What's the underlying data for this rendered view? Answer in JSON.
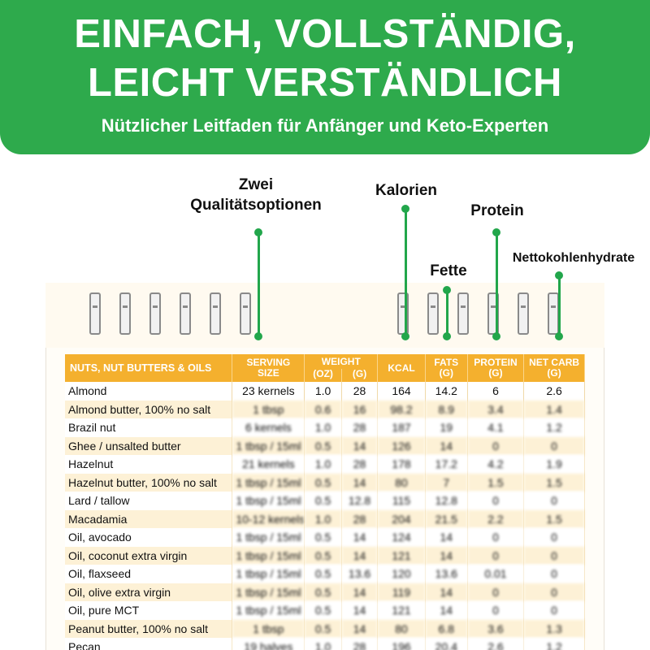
{
  "banner": {
    "title_line1": "EINFACH, VOLLSTÄNDIG,",
    "title_line2": "LEICHT VERSTÄNDLICH",
    "subtitle": "Nützlicher Leitfaden für Anfänger und Keto-Experten",
    "color": "#2eaa4c"
  },
  "callouts": {
    "options_line1": "Zwei",
    "options_line2": "Qualitätsoptionen",
    "calories": "Kalorien",
    "protein": "Protein",
    "fats": "Fette",
    "net_carbs": "Nettokohlenhydrate"
  },
  "table": {
    "header_color": "#f4b02e",
    "headers": {
      "category": "NUTS, NUT BUTTERS & OILS",
      "serving_1": "SERVING",
      "serving_2": "SIZE",
      "weight": "WEIGHT",
      "oz": "(OZ)",
      "g": "(G)",
      "kcal": "KCAL",
      "fats_1": "FATS",
      "fats_2": "(G)",
      "protein_1": "PROTEIN",
      "protein_2": "(G)",
      "netcarb_1": "NET CARB",
      "netcarb_2": "(G)"
    },
    "rows": [
      {
        "name": "Almond",
        "serving": "23 kernels",
        "oz": "1.0",
        "g": "28",
        "kcal": "164",
        "fats": "14.2",
        "protein": "6",
        "netcarb": "2.6"
      },
      {
        "name": "Almond butter, 100% no salt",
        "serving": "1 tbsp",
        "oz": "0.6",
        "g": "16",
        "kcal": "98.2",
        "fats": "8.9",
        "protein": "3.4",
        "netcarb": "1.4"
      },
      {
        "name": "Brazil nut",
        "serving": "6 kernels",
        "oz": "1.0",
        "g": "28",
        "kcal": "187",
        "fats": "19",
        "protein": "4.1",
        "netcarb": "1.2"
      },
      {
        "name": "Ghee / unsalted butter",
        "serving": "1 tbsp / 15ml",
        "oz": "0.5",
        "g": "14",
        "kcal": "126",
        "fats": "14",
        "protein": "0",
        "netcarb": "0"
      },
      {
        "name": "Hazelnut",
        "serving": "21 kernels",
        "oz": "1.0",
        "g": "28",
        "kcal": "178",
        "fats": "17.2",
        "protein": "4.2",
        "netcarb": "1.9"
      },
      {
        "name": "Hazelnut butter, 100% no salt",
        "serving": "1 tbsp / 15ml",
        "oz": "0.5",
        "g": "14",
        "kcal": "80",
        "fats": "7",
        "protein": "1.5",
        "netcarb": "1.5"
      },
      {
        "name": "Lard / tallow",
        "serving": "1 tbsp / 15ml",
        "oz": "0.5",
        "g": "12.8",
        "kcal": "115",
        "fats": "12.8",
        "protein": "0",
        "netcarb": "0"
      },
      {
        "name": "Macadamia",
        "serving": "10-12 kernels",
        "oz": "1.0",
        "g": "28",
        "kcal": "204",
        "fats": "21.5",
        "protein": "2.2",
        "netcarb": "1.5"
      },
      {
        "name": "Oil, avocado",
        "serving": "1 tbsp / 15ml",
        "oz": "0.5",
        "g": "14",
        "kcal": "124",
        "fats": "14",
        "protein": "0",
        "netcarb": "0"
      },
      {
        "name": "Oil, coconut extra virgin",
        "serving": "1 tbsp / 15ml",
        "oz": "0.5",
        "g": "14",
        "kcal": "121",
        "fats": "14",
        "protein": "0",
        "netcarb": "0"
      },
      {
        "name": "Oil, flaxseed",
        "serving": "1 tbsp / 15ml",
        "oz": "0.5",
        "g": "13.6",
        "kcal": "120",
        "fats": "13.6",
        "protein": "0.01",
        "netcarb": "0"
      },
      {
        "name": "Oil, olive extra virgin",
        "serving": "1 tbsp / 15ml",
        "oz": "0.5",
        "g": "14",
        "kcal": "119",
        "fats": "14",
        "protein": "0",
        "netcarb": "0"
      },
      {
        "name": "Oil, pure MCT",
        "serving": "1 tbsp / 15ml",
        "oz": "0.5",
        "g": "14",
        "kcal": "121",
        "fats": "14",
        "protein": "0",
        "netcarb": "0"
      },
      {
        "name": "Peanut butter, 100% no salt",
        "serving": "1 tbsp",
        "oz": "0.5",
        "g": "14",
        "kcal": "80",
        "fats": "6.8",
        "protein": "3.6",
        "netcarb": "1.3"
      },
      {
        "name": "Pecan",
        "serving": "19 halves",
        "oz": "1.0",
        "g": "28",
        "kcal": "196",
        "fats": "20.4",
        "protein": "2.6",
        "netcarb": "1.2"
      }
    ]
  }
}
